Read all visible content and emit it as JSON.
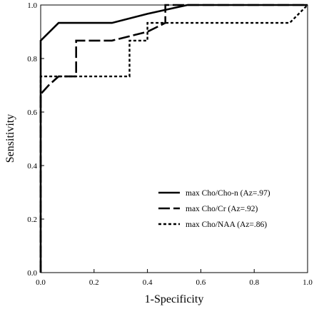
{
  "chart_data": {
    "type": "line",
    "title": "",
    "xlabel": "1-Specificity",
    "ylabel": "Sensitivity",
    "xlim": [
      0,
      1
    ],
    "ylim": [
      0,
      1
    ],
    "xticks": [
      "0.0",
      "0.2",
      "0.4",
      "0.6",
      "0.8",
      "1.0"
    ],
    "yticks": [
      "0.0",
      "0.2",
      "0.4",
      "0.6",
      "0.8",
      "1.0"
    ],
    "grid": false,
    "legend_position": "lower-right",
    "series": [
      {
        "name": "max Cho/Cho-n (Az=.97)",
        "style": "solid",
        "points": [
          [
            0,
            0
          ],
          [
            0,
            0.867
          ],
          [
            0.067,
            0.933
          ],
          [
            0.267,
            0.933
          ],
          [
            0.4,
            0.967
          ],
          [
            0.55,
            1.0
          ],
          [
            1.0,
            1.0
          ]
        ]
      },
      {
        "name": "max Cho/Cr (Az=.92)",
        "style": "dashed",
        "points": [
          [
            0,
            0
          ],
          [
            0,
            0.667
          ],
          [
            0.03,
            0.7
          ],
          [
            0.067,
            0.733
          ],
          [
            0.133,
            0.733
          ],
          [
            0.133,
            0.867
          ],
          [
            0.267,
            0.867
          ],
          [
            0.4,
            0.9
          ],
          [
            0.467,
            0.933
          ],
          [
            0.467,
            1.0
          ],
          [
            1.0,
            1.0
          ]
        ]
      },
      {
        "name": "max Cho/NAA (Az=.86)",
        "style": "dotted",
        "points": [
          [
            0,
            0
          ],
          [
            0,
            0.733
          ],
          [
            0.333,
            0.733
          ],
          [
            0.333,
            0.867
          ],
          [
            0.4,
            0.867
          ],
          [
            0.4,
            0.933
          ],
          [
            0.933,
            0.933
          ],
          [
            1.0,
            1.0
          ]
        ]
      }
    ]
  }
}
